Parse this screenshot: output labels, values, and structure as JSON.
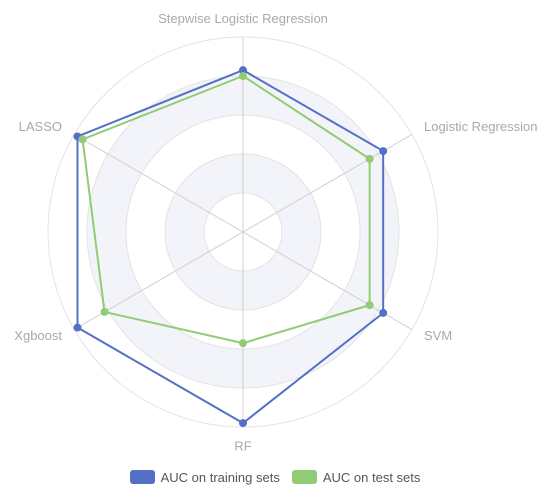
{
  "chart_data": {
    "type": "radar",
    "indicators": [
      "Stepwise Logistic Regression",
      "Logistic Regression",
      "SVM",
      "RF",
      "Xgboost",
      "LASSO"
    ],
    "max": 1.0,
    "grid_rings": 5,
    "series": [
      {
        "name": "AUC on training sets",
        "color": "#5470c6",
        "values": [
          0.83,
          0.83,
          0.83,
          0.98,
          0.98,
          0.98
        ]
      },
      {
        "name": "AUC on test sets",
        "color": "#91cc75",
        "values": [
          0.8,
          0.75,
          0.75,
          0.57,
          0.82,
          0.95
        ]
      }
    ],
    "legend_position": "bottom"
  }
}
